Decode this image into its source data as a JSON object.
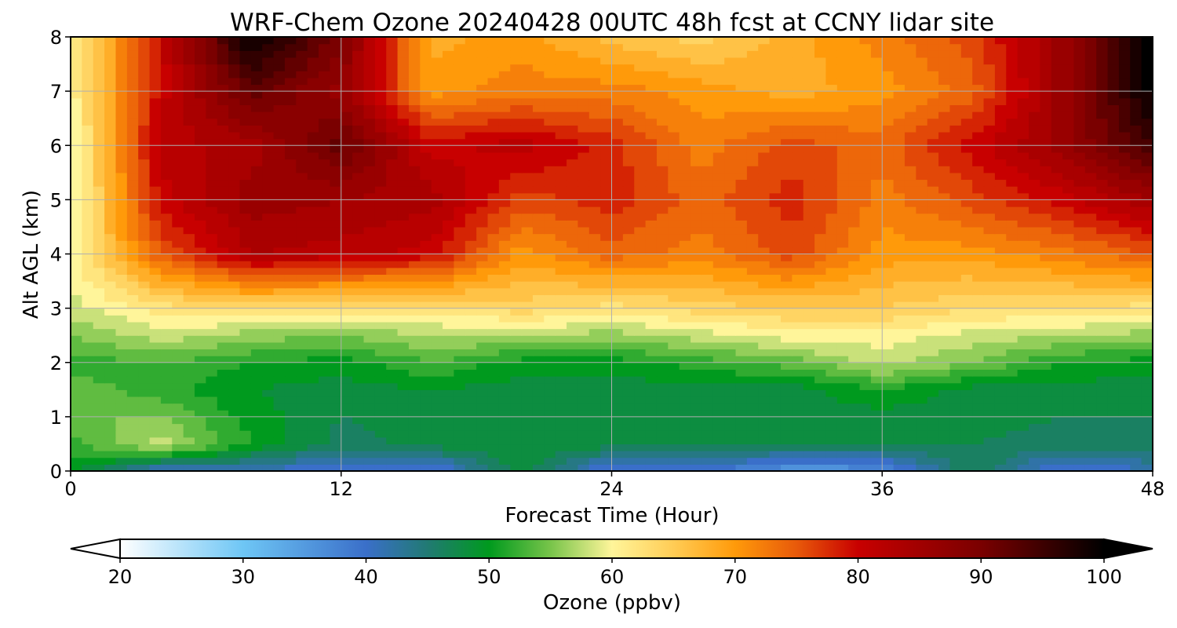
{
  "chart_data": {
    "type": "heatmap",
    "title": "WRF-Chem Ozone  20240428 00UTC 48h fcst at CCNY lidar site",
    "xlabel": "Forecast Time (Hour)",
    "ylabel": "Alt AGL (km)",
    "xlim": [
      0,
      48
    ],
    "ylim": [
      0,
      8
    ],
    "x_ticks": [
      "0",
      "12",
      "24",
      "36",
      "48"
    ],
    "y_ticks": [
      "0",
      "1",
      "2",
      "3",
      "4",
      "5",
      "6",
      "7",
      "8"
    ],
    "grid": true,
    "colorbar": {
      "label": "Ozone  (ppbv)",
      "min": 20,
      "max": 100,
      "ticks": [
        "20",
        "30",
        "40",
        "50",
        "60",
        "70",
        "80",
        "90",
        "100"
      ],
      "extend": "both",
      "stops": [
        {
          "v": 20,
          "c": "#ffffff"
        },
        {
          "v": 30,
          "c": "#6ec6f5"
        },
        {
          "v": 40,
          "c": "#3a6fc9"
        },
        {
          "v": 45,
          "c": "#217a73"
        },
        {
          "v": 50,
          "c": "#009a1e"
        },
        {
          "v": 55,
          "c": "#78c44a"
        },
        {
          "v": 60,
          "c": "#fff59a"
        },
        {
          "v": 65,
          "c": "#ffcc55"
        },
        {
          "v": 70,
          "c": "#ff9a0a"
        },
        {
          "v": 75,
          "c": "#e85a0a"
        },
        {
          "v": 80,
          "c": "#c80000"
        },
        {
          "v": 90,
          "c": "#7a0000"
        },
        {
          "v": 100,
          "c": "#000000"
        }
      ]
    },
    "grid_data": {
      "x": [
        0,
        4,
        8,
        12,
        16,
        20,
        24,
        28,
        32,
        36,
        40,
        44,
        48
      ],
      "y": [
        0,
        0.5,
        1,
        1.5,
        2,
        2.5,
        3,
        4,
        5,
        6,
        7,
        8
      ],
      "z": [
        [
          50,
          40,
          41,
          38,
          38,
          48,
          38,
          40,
          35,
          36,
          47,
          38,
          41
        ],
        [
          52,
          58,
          51,
          46,
          48,
          49,
          48,
          47,
          47,
          47,
          47,
          46,
          47
        ],
        [
          55,
          55,
          50,
          47,
          48,
          47,
          48,
          47,
          48,
          48,
          48,
          47,
          47
        ],
        [
          54,
          52,
          49,
          48,
          49,
          48,
          48,
          48,
          48,
          51,
          48,
          48,
          48
        ],
        [
          52,
          53,
          51,
          50,
          53,
          50,
          50,
          52,
          54,
          58,
          55,
          51,
          50
        ],
        [
          55,
          58,
          56,
          55,
          57,
          57,
          56,
          58,
          60,
          60,
          58,
          57,
          56
        ],
        [
          58,
          62,
          63,
          62,
          62,
          64,
          62,
          64,
          65,
          65,
          63,
          63,
          62
        ],
        [
          60,
          75,
          83,
          82,
          80,
          70,
          74,
          72,
          76,
          70,
          70,
          72,
          75
        ],
        [
          58,
          80,
          86,
          85,
          84,
          76,
          78,
          74,
          78,
          72,
          76,
          80,
          85
        ],
        [
          58,
          82,
          84,
          92,
          80,
          82,
          78,
          72,
          76,
          74,
          80,
          86,
          95
        ],
        [
          60,
          80,
          92,
          86,
          70,
          72,
          72,
          70,
          68,
          70,
          74,
          86,
          100
        ],
        [
          60,
          80,
          100,
          90,
          68,
          70,
          66,
          64,
          68,
          72,
          76,
          86,
          100
        ]
      ]
    }
  }
}
